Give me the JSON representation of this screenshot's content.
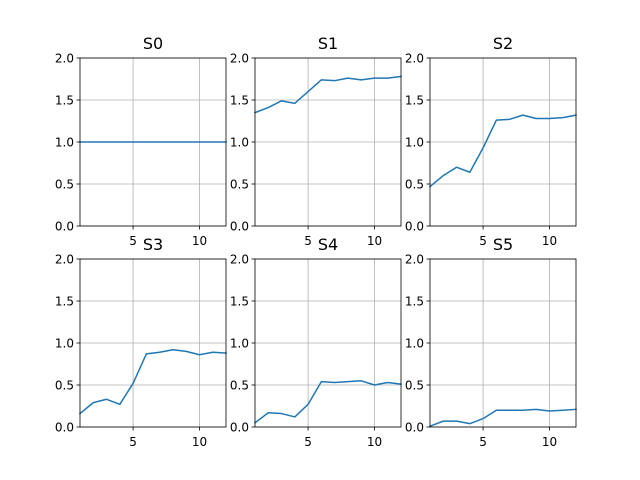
{
  "chart_data": [
    {
      "type": "line",
      "title": "S0",
      "x": [
        1,
        2,
        3,
        4,
        5,
        6,
        7,
        8,
        9,
        10,
        11,
        12
      ],
      "values": [
        1,
        1,
        1,
        1,
        1,
        1,
        1,
        1,
        1,
        1,
        1,
        1
      ],
      "xlim": [
        1,
        12
      ],
      "ylim": [
        0,
        2
      ],
      "xticks": [
        5,
        10
      ],
      "yticks": [
        0.0,
        0.5,
        1.0,
        1.5,
        2.0
      ],
      "ytick_labels": [
        "0.0",
        "0.5",
        "1.0",
        "1.5",
        "2.0"
      ],
      "grid": true,
      "color": "#1f77b4"
    },
    {
      "type": "line",
      "title": "S1",
      "x": [
        1,
        2,
        3,
        4,
        5,
        6,
        7,
        8,
        9,
        10,
        11,
        12
      ],
      "values": [
        1.35,
        1.41,
        1.49,
        1.46,
        1.6,
        1.74,
        1.73,
        1.76,
        1.74,
        1.76,
        1.76,
        1.78
      ],
      "xlim": [
        1,
        12
      ],
      "ylim": [
        0,
        2
      ],
      "xticks": [
        5,
        10
      ],
      "yticks": [
        0.0,
        0.5,
        1.0,
        1.5,
        2.0
      ],
      "ytick_labels": [
        "0.0",
        "0.5",
        "1.0",
        "1.5",
        "2.0"
      ],
      "grid": true,
      "color": "#1f77b4"
    },
    {
      "type": "line",
      "title": "S2",
      "x": [
        1,
        2,
        3,
        4,
        5,
        6,
        7,
        8,
        9,
        10,
        11,
        12
      ],
      "values": [
        0.47,
        0.6,
        0.7,
        0.64,
        0.93,
        1.26,
        1.27,
        1.32,
        1.28,
        1.28,
        1.29,
        1.32
      ],
      "xlim": [
        1,
        12
      ],
      "ylim": [
        0,
        2
      ],
      "xticks": [
        5,
        10
      ],
      "yticks": [
        0.0,
        0.5,
        1.0,
        1.5,
        2.0
      ],
      "ytick_labels": [
        "0.0",
        "0.5",
        "1.0",
        "1.5",
        "2.0"
      ],
      "grid": true,
      "color": "#1f77b4"
    },
    {
      "type": "line",
      "title": "S3",
      "x": [
        1,
        2,
        3,
        4,
        5,
        6,
        7,
        8,
        9,
        10,
        11,
        12
      ],
      "values": [
        0.16,
        0.29,
        0.33,
        0.27,
        0.52,
        0.87,
        0.89,
        0.92,
        0.9,
        0.86,
        0.89,
        0.88
      ],
      "xlim": [
        1,
        12
      ],
      "ylim": [
        0,
        2
      ],
      "xticks": [
        5,
        10
      ],
      "yticks": [
        0.0,
        0.5,
        1.0,
        1.5,
        2.0
      ],
      "ytick_labels": [
        "0.0",
        "0.5",
        "1.0",
        "1.5",
        "2.0"
      ],
      "grid": true,
      "color": "#1f77b4"
    },
    {
      "type": "line",
      "title": "S4",
      "x": [
        1,
        2,
        3,
        4,
        5,
        6,
        7,
        8,
        9,
        10,
        11,
        12
      ],
      "values": [
        0.05,
        0.17,
        0.16,
        0.12,
        0.27,
        0.54,
        0.53,
        0.54,
        0.55,
        0.5,
        0.53,
        0.51
      ],
      "xlim": [
        1,
        12
      ],
      "ylim": [
        0,
        2
      ],
      "xticks": [
        5,
        10
      ],
      "yticks": [
        0.0,
        0.5,
        1.0,
        1.5,
        2.0
      ],
      "ytick_labels": [
        "0.0",
        "0.5",
        "1.0",
        "1.5",
        "2.0"
      ],
      "grid": true,
      "color": "#1f77b4"
    },
    {
      "type": "line",
      "title": "S5",
      "x": [
        1,
        2,
        3,
        4,
        5,
        6,
        7,
        8,
        9,
        10,
        11,
        12
      ],
      "values": [
        0.01,
        0.07,
        0.07,
        0.04,
        0.1,
        0.2,
        0.2,
        0.2,
        0.21,
        0.19,
        0.2,
        0.21
      ],
      "xlim": [
        1,
        12
      ],
      "ylim": [
        0,
        2
      ],
      "xticks": [
        5,
        10
      ],
      "yticks": [
        0.0,
        0.5,
        1.0,
        1.5,
        2.0
      ],
      "ytick_labels": [
        "0.0",
        "0.5",
        "1.0",
        "1.5",
        "2.0"
      ],
      "grid": true,
      "color": "#1f77b4"
    }
  ]
}
